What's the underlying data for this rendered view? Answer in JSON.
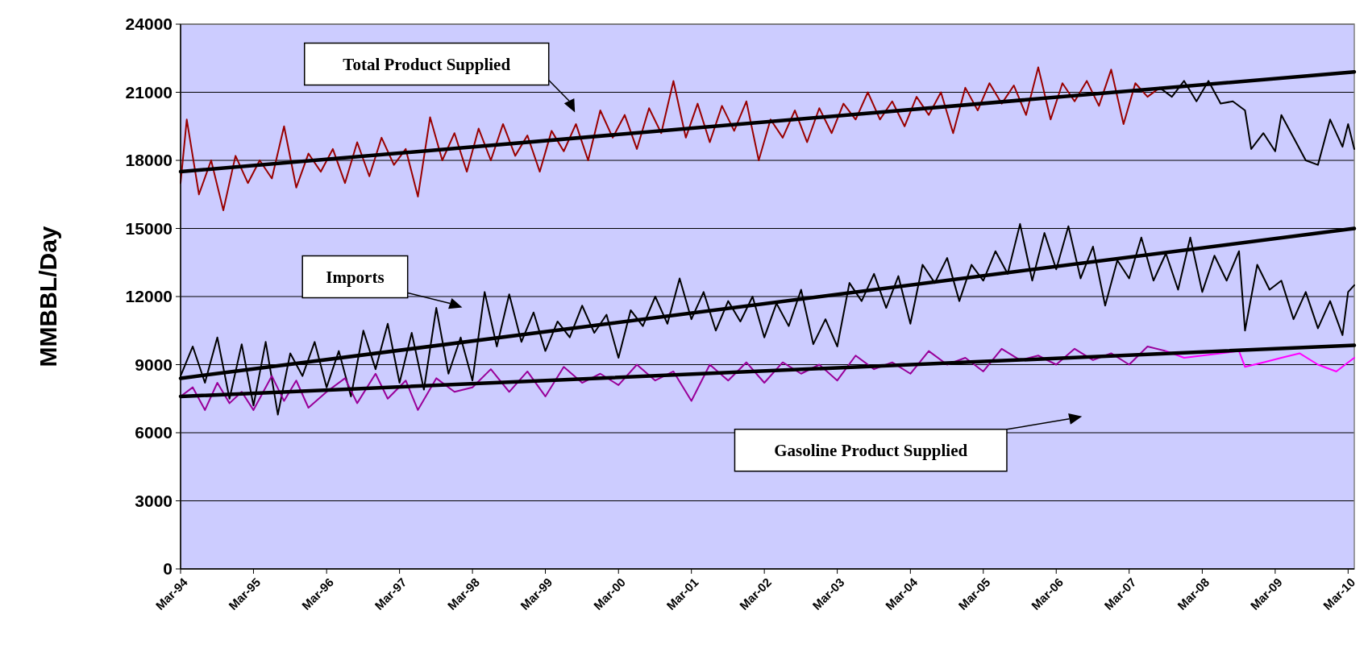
{
  "chart_data": {
    "type": "line",
    "ylabel": "MMBBL/Day",
    "ylim": [
      0,
      24000
    ],
    "yticks": [
      0,
      3000,
      6000,
      9000,
      12000,
      15000,
      18000,
      21000,
      24000
    ],
    "xlim": [
      "1994-03",
      "2010-04"
    ],
    "xticks": [
      {
        "value": "1994-03",
        "label": "Mar-94"
      },
      {
        "value": "1995-03",
        "label": "Mar-95"
      },
      {
        "value": "1996-03",
        "label": "Mar-96"
      },
      {
        "value": "1997-03",
        "label": "Mar-97"
      },
      {
        "value": "1998-03",
        "label": "Mar-98"
      },
      {
        "value": "1999-03",
        "label": "Mar-99"
      },
      {
        "value": "2000-03",
        "label": "Mar-00"
      },
      {
        "value": "2001-03",
        "label": "Mar-01"
      },
      {
        "value": "2002-03",
        "label": "Mar-02"
      },
      {
        "value": "2003-03",
        "label": "Mar-03"
      },
      {
        "value": "2004-03",
        "label": "Mar-04"
      },
      {
        "value": "2005-03",
        "label": "Mar-05"
      },
      {
        "value": "2006-03",
        "label": "Mar-06"
      },
      {
        "value": "2007-03",
        "label": "Mar-07"
      },
      {
        "value": "2008-03",
        "label": "Mar-08"
      },
      {
        "value": "2009-03",
        "label": "Mar-09"
      },
      {
        "value": "2010-03",
        "label": "Mar-10"
      }
    ],
    "grid": "y",
    "line_style": "solid",
    "marker": "none",
    "series": [
      {
        "color": "#990000",
        "x": [
          "1994-03",
          "1994-04",
          "1994-06",
          "1994-08",
          "1994-10",
          "1994-12",
          "1995-02",
          "1995-04",
          "1995-06",
          "1995-08",
          "1995-10",
          "1995-12",
          "1996-02",
          "1996-04",
          "1996-06",
          "1996-08",
          "1996-10",
          "1996-12",
          "1997-02",
          "1997-04",
          "1997-06",
          "1997-08",
          "1997-10",
          "1997-12",
          "1998-02",
          "1998-04",
          "1998-06",
          "1998-08",
          "1998-10",
          "1998-12",
          "1999-02",
          "1999-04",
          "1999-06",
          "1999-08",
          "1999-10",
          "1999-12",
          "2000-02",
          "2000-04",
          "2000-06",
          "2000-08",
          "2000-10",
          "2000-12",
          "2001-02",
          "2001-04",
          "2001-06",
          "2001-08",
          "2001-10",
          "2001-12",
          "2002-02",
          "2002-04",
          "2002-06",
          "2002-08",
          "2002-10",
          "2002-12",
          "2003-02",
          "2003-04",
          "2003-06",
          "2003-08",
          "2003-10",
          "2003-12",
          "2004-02",
          "2004-04",
          "2004-06",
          "2004-08",
          "2004-10",
          "2004-12",
          "2005-02",
          "2005-04",
          "2005-06",
          "2005-08",
          "2005-10",
          "2005-12",
          "2006-02",
          "2006-04",
          "2006-06",
          "2006-08",
          "2006-10",
          "2006-12",
          "2007-02",
          "2007-04",
          "2007-06",
          "2007-08"
        ],
        "values": [
          17000,
          19800,
          16500,
          18000,
          15800,
          18200,
          17000,
          18000,
          17200,
          19500,
          16800,
          18300,
          17500,
          18500,
          17000,
          18800,
          17300,
          19000,
          17800,
          18500,
          16400,
          19900,
          18000,
          19200,
          17500,
          19400,
          18000,
          19600,
          18200,
          19100,
          17500,
          19300,
          18400,
          19600,
          18000,
          20200,
          19000,
          20000,
          18500,
          20300,
          19200,
          21500,
          19000,
          20500,
          18800,
          20400,
          19300,
          20600,
          18000,
          19800,
          19000,
          20200,
          18800,
          20300,
          19200,
          20500,
          19800,
          21000,
          19800,
          20600,
          19500,
          20800,
          20000,
          21000,
          19200,
          21200,
          20200,
          21400,
          20500,
          21300,
          20000,
          22100,
          19800,
          21400,
          20600,
          21500,
          20400,
          22000,
          19600,
          21400,
          20800,
          21200
        ]
      },
      {
        "color": "#000000",
        "x": [
          "2007-08",
          "2007-10",
          "2007-12",
          "2008-02",
          "2008-04",
          "2008-06",
          "2008-08",
          "2008-10",
          "2008-11",
          "2009-01",
          "2009-03",
          "2009-04",
          "2009-06",
          "2009-08",
          "2009-10",
          "2009-12",
          "2010-02",
          "2010-03",
          "2010-04"
        ],
        "values": [
          21200,
          20800,
          21500,
          20600,
          21500,
          20500,
          20600,
          20200,
          18500,
          19200,
          18400,
          20000,
          19000,
          18000,
          17800,
          19800,
          18600,
          19600,
          18500
        ]
      },
      {
        "color": "#000000",
        "x": [
          "1994-03",
          "1994-05",
          "1994-07",
          "1994-09",
          "1994-11",
          "1995-01",
          "1995-03",
          "1995-05",
          "1995-07",
          "1995-09",
          "1995-11",
          "1996-01",
          "1996-03",
          "1996-05",
          "1996-07",
          "1996-09",
          "1996-11",
          "1997-01",
          "1997-03",
          "1997-05",
          "1997-07",
          "1997-09",
          "1997-11",
          "1998-01",
          "1998-03",
          "1998-05",
          "1998-07",
          "1998-09",
          "1998-11",
          "1999-01",
          "1999-03",
          "1999-05",
          "1999-07",
          "1999-09",
          "1999-11",
          "2000-01",
          "2000-03",
          "2000-05",
          "2000-07",
          "2000-09",
          "2000-11",
          "2001-01",
          "2001-03",
          "2001-05",
          "2001-07",
          "2001-09",
          "2001-11",
          "2002-01",
          "2002-03",
          "2002-05",
          "2002-07",
          "2002-09",
          "2002-11",
          "2003-01",
          "2003-03",
          "2003-05",
          "2003-07",
          "2003-09",
          "2003-11",
          "2004-01",
          "2004-03",
          "2004-05",
          "2004-07",
          "2004-09",
          "2004-11",
          "2005-01",
          "2005-03",
          "2005-05",
          "2005-07",
          "2005-09",
          "2005-11",
          "2006-01",
          "2006-03",
          "2006-05",
          "2006-07",
          "2006-09",
          "2006-11",
          "2007-01",
          "2007-03",
          "2007-05",
          "2007-07",
          "2007-09",
          "2007-11",
          "2008-01",
          "2008-03",
          "2008-05",
          "2008-07",
          "2008-09",
          "2008-10",
          "2008-12",
          "2009-02",
          "2009-04",
          "2009-06",
          "2009-08",
          "2009-10",
          "2009-12",
          "2010-02",
          "2010-03",
          "2010-04"
        ],
        "values": [
          8500,
          9800,
          8200,
          10200,
          7500,
          9900,
          7200,
          10000,
          6800,
          9500,
          8500,
          10000,
          8000,
          9600,
          7600,
          10500,
          8800,
          10800,
          8200,
          10400,
          7900,
          11500,
          8600,
          10200,
          8300,
          12200,
          9800,
          12100,
          10000,
          11300,
          9600,
          10900,
          10200,
          11600,
          10400,
          11200,
          9300,
          11400,
          10700,
          12000,
          10800,
          12800,
          11000,
          12200,
          10500,
          11800,
          10900,
          12000,
          10200,
          11700,
          10700,
          12300,
          9900,
          11000,
          9800,
          12600,
          11800,
          13000,
          11500,
          12900,
          10800,
          13400,
          12600,
          13700,
          11800,
          13400,
          12700,
          14000,
          13000,
          15200,
          12700,
          14800,
          13200,
          15100,
          12800,
          14200,
          11600,
          13600,
          12800,
          14600,
          12700,
          13900,
          12300,
          14600,
          12200,
          13800,
          12700,
          14000,
          10500,
          13400,
          12300,
          12700,
          11000,
          12200,
          10600,
          11800,
          10300,
          12200,
          12500
        ]
      },
      {
        "color": "#990099",
        "x": [
          "1994-03",
          "1994-05",
          "1994-07",
          "1994-09",
          "1994-11",
          "1995-01",
          "1995-03",
          "1995-06",
          "1995-08",
          "1995-10",
          "1995-12",
          "1996-03",
          "1996-06",
          "1996-08",
          "1996-11",
          "1997-01",
          "1997-04",
          "1997-06",
          "1997-09",
          "1997-12",
          "1998-03",
          "1998-06",
          "1998-09",
          "1998-12",
          "1999-03",
          "1999-06",
          "1999-09",
          "1999-12",
          "2000-03",
          "2000-06",
          "2000-09",
          "2000-12",
          "2001-03",
          "2001-06",
          "2001-09",
          "2001-12",
          "2002-03",
          "2002-06",
          "2002-09",
          "2002-12",
          "2003-03",
          "2003-06",
          "2003-09",
          "2003-12",
          "2004-03",
          "2004-06",
          "2004-09",
          "2004-12",
          "2005-03",
          "2005-06",
          "2005-09",
          "2005-12",
          "2006-03",
          "2006-06",
          "2006-09",
          "2006-12",
          "2007-03",
          "2007-06",
          "2007-09"
        ],
        "values": [
          7600,
          8000,
          7000,
          8200,
          7300,
          7800,
          7000,
          8500,
          7400,
          8300,
          7100,
          7800,
          8400,
          7300,
          8600,
          7500,
          8300,
          7000,
          8400,
          7800,
          8000,
          8800,
          7800,
          8700,
          7600,
          8900,
          8200,
          8600,
          8100,
          9000,
          8300,
          8700,
          7400,
          9000,
          8300,
          9100,
          8200,
          9100,
          8600,
          9000,
          8300,
          9400,
          8800,
          9100,
          8600,
          9600,
          9000,
          9300,
          8700,
          9700,
          9200,
          9400,
          9000,
          9700,
          9200,
          9500,
          9000,
          9800,
          9600
        ]
      },
      {
        "color": "#ff00ff",
        "x": [
          "2007-09",
          "2007-12",
          "2008-03",
          "2008-06",
          "2008-09",
          "2008-10",
          "2009-01",
          "2009-04",
          "2009-07",
          "2009-10",
          "2010-01",
          "2010-03",
          "2010-04"
        ],
        "values": [
          9600,
          9300,
          9400,
          9500,
          9600,
          8900,
          9100,
          9300,
          9500,
          9000,
          8700,
          9100,
          9300
        ]
      },
      {
        "color": "#000000",
        "x": [
          "1994-03",
          "2010-04"
        ],
        "values": [
          17500,
          21900
        ]
      },
      {
        "color": "#000000",
        "x": [
          "1994-03",
          "2010-04"
        ],
        "values": [
          8400,
          15000
        ]
      },
      {
        "color": "#000000",
        "x": [
          "1994-03",
          "2010-04"
        ],
        "values": [
          7600,
          9850
        ]
      }
    ],
    "annotations": [
      "Total Product Supplied",
      "Imports",
      "Gasoline Product Supplied"
    ]
  }
}
